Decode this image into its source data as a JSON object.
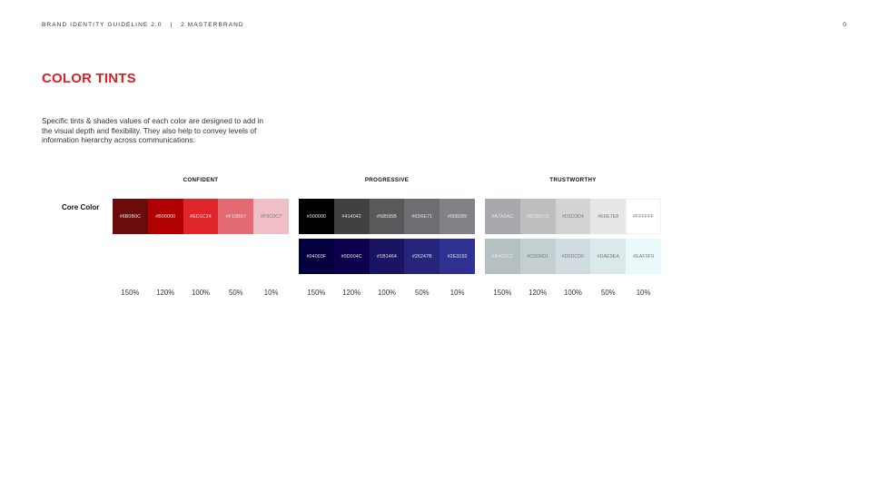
{
  "header": {
    "doc_title": "BRAND IDENTITY GUIDELINE 2.0",
    "separator": "|",
    "section": "2 MASTERBRAND",
    "page_number": "0"
  },
  "page": {
    "title": "COLOR TINTS",
    "description": "Specific tints & shades values of each color are designed to add in the visual depth and flexibility. They also help to convey levels of information hierarchy across communications.",
    "core_label": "Core Color"
  },
  "groups": [
    {
      "name": "CONFIDENT",
      "rows": [
        [
          {
            "hex": "#6B0B0C",
            "color": "#6B0B0C",
            "text": "dark"
          },
          {
            "hex": "#B00000",
            "color": "#B00000",
            "text": "dark"
          },
          {
            "hex": "#ED1C24",
            "color": "#E0262B",
            "text": "dark"
          },
          {
            "hex": "#F15B67",
            "color": "#E36A72",
            "text": "dark"
          },
          {
            "hex": "#F9C0C7",
            "color": "#F0BFC6",
            "text": "light"
          }
        ]
      ],
      "percents": [
        "150%",
        "120%",
        "100%",
        "50%",
        "10%"
      ]
    },
    {
      "name": "PROGRESSIVE",
      "rows": [
        [
          {
            "hex": "#000000",
            "color": "#000000",
            "text": "dark"
          },
          {
            "hex": "#414042",
            "color": "#414042",
            "text": "dark"
          },
          {
            "hex": "#58595B",
            "color": "#58595B",
            "text": "dark"
          },
          {
            "hex": "#6D6E71",
            "color": "#6D6E71",
            "text": "dark"
          },
          {
            "hex": "#808285",
            "color": "#808285",
            "text": "dark"
          }
        ],
        [
          {
            "hex": "#04003F",
            "color": "#04003F",
            "text": "dark"
          },
          {
            "hex": "#0D004C",
            "color": "#0D004C",
            "text": "dark"
          },
          {
            "hex": "#1B1464",
            "color": "#1B1464",
            "text": "dark"
          },
          {
            "hex": "#26247B",
            "color": "#26247B",
            "text": "dark"
          },
          {
            "hex": "#2E3192",
            "color": "#2E3192",
            "text": "dark"
          }
        ]
      ],
      "percents": [
        "150%",
        "120%",
        "100%",
        "50%",
        "10%"
      ]
    },
    {
      "name": "TRUSTWORTHY",
      "rows": [
        [
          {
            "hex": "#A7A9AC",
            "color": "#A7A9AC",
            "text": "dark"
          },
          {
            "hex": "#BCBEC0",
            "color": "#BCBEC0",
            "text": "dark"
          },
          {
            "hex": "#D1D3D4",
            "color": "#D1D3D4",
            "text": "light"
          },
          {
            "hex": "#E6E7E8",
            "color": "#E6E7E8",
            "text": "light"
          },
          {
            "hex": "#FFFFFF",
            "color": "#FFFFFF",
            "text": "light"
          }
        ],
        [
          {
            "hex": "#B4C0C1",
            "color": "#B4C0C1",
            "text": "dark"
          },
          {
            "hex": "#C5D0D1",
            "color": "#C5D0D1",
            "text": "light"
          },
          {
            "hex": "#D0DCDF",
            "color": "#D0DCDF",
            "text": "light"
          },
          {
            "hex": "#DAE9EA",
            "color": "#DAE9EA",
            "text": "light"
          },
          {
            "hex": "#EAF9F9",
            "color": "#EAF9F9",
            "text": "light"
          }
        ]
      ],
      "percents": [
        "150%",
        "120%",
        "100%",
        "50%",
        "10%"
      ]
    }
  ]
}
